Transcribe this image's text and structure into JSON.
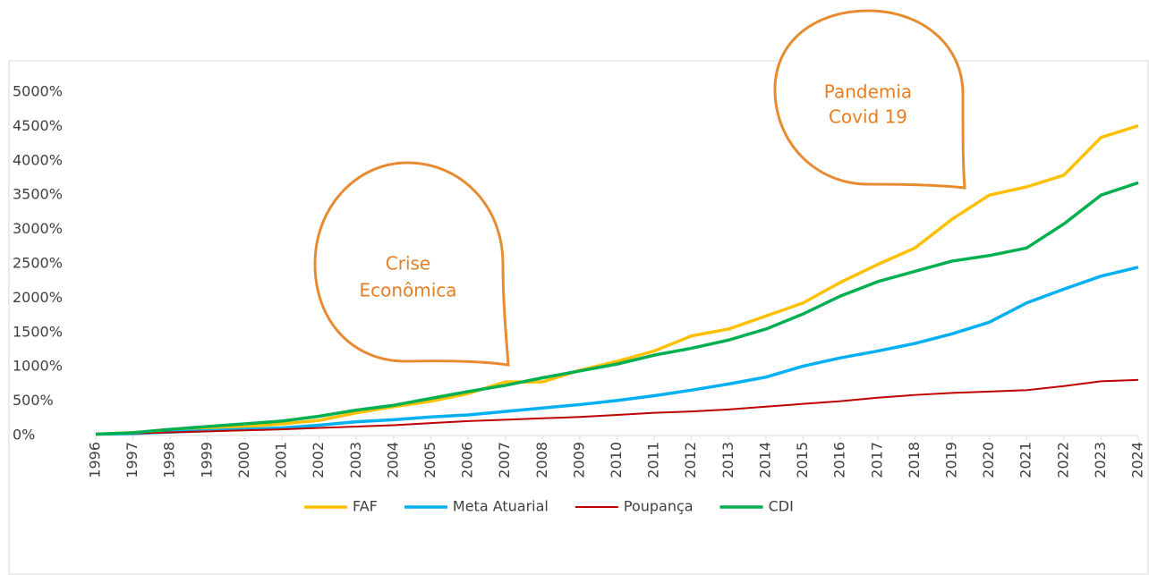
{
  "chart_data": {
    "type": "line",
    "x": [
      "1996",
      "1997",
      "1998",
      "1999",
      "2000",
      "2001",
      "2002",
      "2003",
      "2004",
      "2005",
      "2006",
      "2007",
      "2008",
      "2009",
      "2010",
      "2011",
      "2012",
      "2013",
      "2014",
      "2015",
      "2016",
      "2017",
      "2018",
      "2019",
      "2020",
      "2021",
      "2022",
      "2023",
      "2024"
    ],
    "series": [
      {
        "name": "FAF",
        "color": "#FFC000",
        "values": [
          20,
          40,
          70,
          100,
          130,
          170,
          220,
          330,
          420,
          500,
          610,
          780,
          780,
          950,
          1080,
          1230,
          1450,
          1550,
          1740,
          1930,
          2230,
          2490,
          2730,
          3150,
          3500,
          3620,
          3790,
          4340,
          4510
        ]
      },
      {
        "name": "Meta Atuarial",
        "color": "#00B0F0",
        "values": [
          20,
          30,
          50,
          70,
          90,
          110,
          150,
          200,
          230,
          270,
          300,
          350,
          400,
          450,
          510,
          580,
          660,
          750,
          850,
          1010,
          1130,
          1230,
          1340,
          1480,
          1650,
          1930,
          2130,
          2320,
          2450
        ]
      },
      {
        "name": "Poupança",
        "color": "#C00000",
        "values": [
          20,
          30,
          45,
          60,
          75,
          90,
          110,
          130,
          150,
          180,
          210,
          230,
          250,
          270,
          300,
          330,
          350,
          380,
          420,
          460,
          500,
          550,
          590,
          620,
          640,
          660,
          720,
          790,
          810
        ]
      },
      {
        "name": "CDI",
        "color": "#00B050",
        "values": [
          20,
          40,
          90,
          130,
          170,
          210,
          280,
          370,
          440,
          540,
          640,
          730,
          840,
          940,
          1040,
          1170,
          1270,
          1390,
          1550,
          1770,
          2030,
          2240,
          2390,
          2540,
          2620,
          2730,
          3080,
          3500,
          3680
        ]
      }
    ],
    "ylim": [
      0,
      5000
    ],
    "yticks": [
      {
        "value": 0,
        "label": "0%"
      },
      {
        "value": 500,
        "label": "500%"
      },
      {
        "value": 1000,
        "label": "1000%"
      },
      {
        "value": 1500,
        "label": "1500%"
      },
      {
        "value": 2000,
        "label": "2000%"
      },
      {
        "value": 2500,
        "label": "2500%"
      },
      {
        "value": 3000,
        "label": "3000%"
      },
      {
        "value": 3500,
        "label": "3500%"
      },
      {
        "value": 4000,
        "label": "4000%"
      },
      {
        "value": 4500,
        "label": "4500%"
      },
      {
        "value": 5000,
        "label": "5000%"
      }
    ],
    "annotations": [
      {
        "lines": [
          "Crise",
          "Econômica"
        ]
      },
      {
        "lines": [
          "Pandemia",
          "Covid 19"
        ]
      }
    ],
    "legend": "bottom"
  }
}
